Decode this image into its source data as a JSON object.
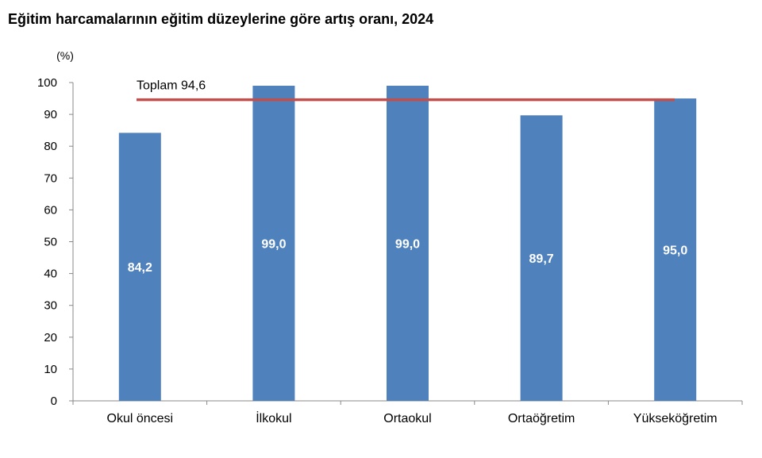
{
  "chart_data": {
    "type": "bar",
    "title": "Eğitim harcamalarının eğitim düzeylerine göre artış oranı, 2024",
    "ylabel": "(%)",
    "xlabel": "",
    "categories": [
      "Okul öncesi",
      "İlkokul",
      "Ortaokul",
      "Ortaöğretim",
      "Yükseköğretim"
    ],
    "values": [
      84.2,
      99.0,
      99.0,
      89.7,
      95.0
    ],
    "value_labels": [
      "84,2",
      "99,0",
      "99,0",
      "89,7",
      "95,0"
    ],
    "yticks": [
      0,
      10,
      20,
      30,
      40,
      50,
      60,
      70,
      80,
      90,
      100
    ],
    "ylim": [
      0,
      100
    ],
    "grid": false,
    "bar_color": "#4f81bd",
    "reference_line": {
      "label": "Toplam 94,6",
      "value": 94.6,
      "color": "#c0504d"
    }
  }
}
